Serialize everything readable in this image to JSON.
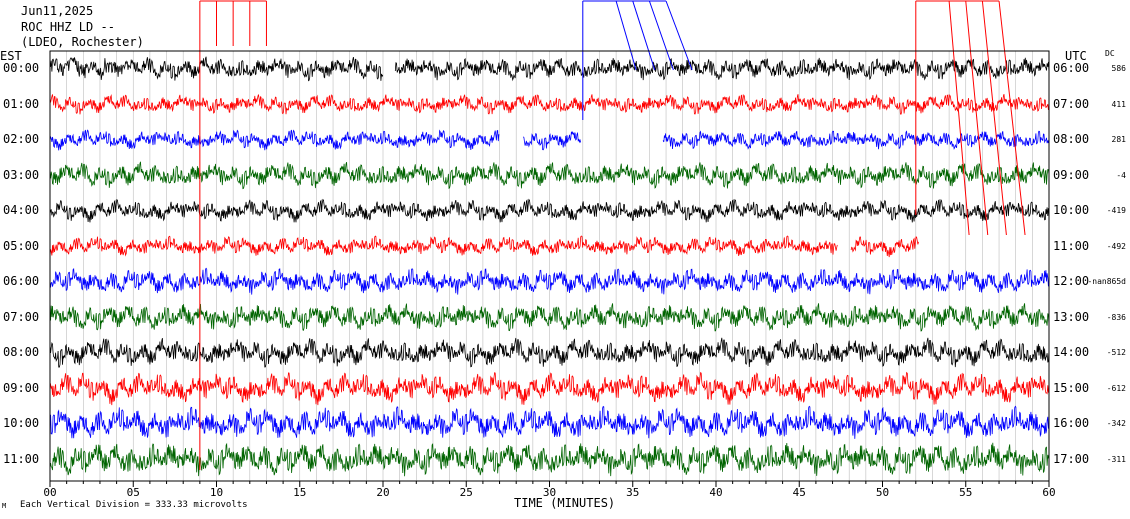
{
  "header": {
    "date": "Jun11,2025",
    "station": "ROC HHZ LD --",
    "network": "(LDEO, Rochester)"
  },
  "left_label": "EST",
  "right_label": "UTC",
  "dc_label": "DC",
  "footer": {
    "xlabel": "TIME (MINUTES)",
    "scale_note": "Each Vertical Division = 333.33 microvolts",
    "scale_mark": "M"
  },
  "chart_data": {
    "type": "line",
    "title": "",
    "xlabel": "TIME (MINUTES)",
    "xlim": [
      0,
      60
    ],
    "x_ticks": [
      "00",
      "05",
      "10",
      "15",
      "20",
      "25",
      "30",
      "35",
      "40",
      "45",
      "50",
      "55",
      "60"
    ],
    "x_tick_values": [
      0,
      5,
      10,
      15,
      20,
      25,
      30,
      35,
      40,
      45,
      50,
      55,
      60
    ],
    "rows": [
      {
        "est": "00:00",
        "utc": "06:00",
        "dc": "586",
        "color": "#000000",
        "amplitude": 0.55
      },
      {
        "est": "01:00",
        "utc": "07:00",
        "dc": "411",
        "color": "#ff0000",
        "amplitude": 0.45
      },
      {
        "est": "02:00",
        "utc": "08:00",
        "dc": "281",
        "color": "#0000ff",
        "amplitude": 0.45
      },
      {
        "est": "03:00",
        "utc": "09:00",
        "dc": "-4",
        "color": "#006400",
        "amplitude": 0.6
      },
      {
        "est": "04:00",
        "utc": "10:00",
        "dc": "-419",
        "color": "#000000",
        "amplitude": 0.5
      },
      {
        "est": "05:00",
        "utc": "11:00",
        "dc": "-492",
        "color": "#ff0000",
        "amplitude": 0.45
      },
      {
        "est": "06:00",
        "utc": "12:00",
        "dc": "-nan865d",
        "color": "#0000ff",
        "amplitude": 0.6
      },
      {
        "est": "07:00",
        "utc": "13:00",
        "dc": "-836",
        "color": "#006400",
        "amplitude": 0.65
      },
      {
        "est": "08:00",
        "utc": "14:00",
        "dc": "-512",
        "color": "#000000",
        "amplitude": 0.65
      },
      {
        "est": "09:00",
        "utc": "15:00",
        "dc": "-612",
        "color": "#ff0000",
        "amplitude": 0.7
      },
      {
        "est": "10:00",
        "utc": "16:00",
        "dc": "-342",
        "color": "#0000ff",
        "amplitude": 0.75
      },
      {
        "est": "11:00",
        "utc": "17:00",
        "dc": "-311",
        "color": "#006400",
        "amplitude": 0.8
      }
    ],
    "gaps": [
      {
        "row": 0,
        "x0": 20.0,
        "x1": 20.7
      },
      {
        "row": 2,
        "x0": 27.0,
        "x1": 28.4
      },
      {
        "row": 2,
        "x0": 31.9,
        "x1": 36.8
      },
      {
        "row": 5,
        "x0": 47.3,
        "x1": 48.1
      },
      {
        "row": 5,
        "x0": 52.2,
        "x1": 60.0
      }
    ],
    "marker_groups": [
      {
        "color": "#ff0000",
        "x": [
          9.0,
          10.0,
          11.0,
          12.0,
          13.0
        ]
      },
      {
        "color": "#0000ff",
        "x": [
          32.0,
          34.0,
          35.0,
          36.0,
          37.0
        ]
      },
      {
        "color": "#ff0000",
        "x": [
          52.0,
          54.0,
          55.0,
          56.0,
          57.0
        ]
      }
    ]
  }
}
